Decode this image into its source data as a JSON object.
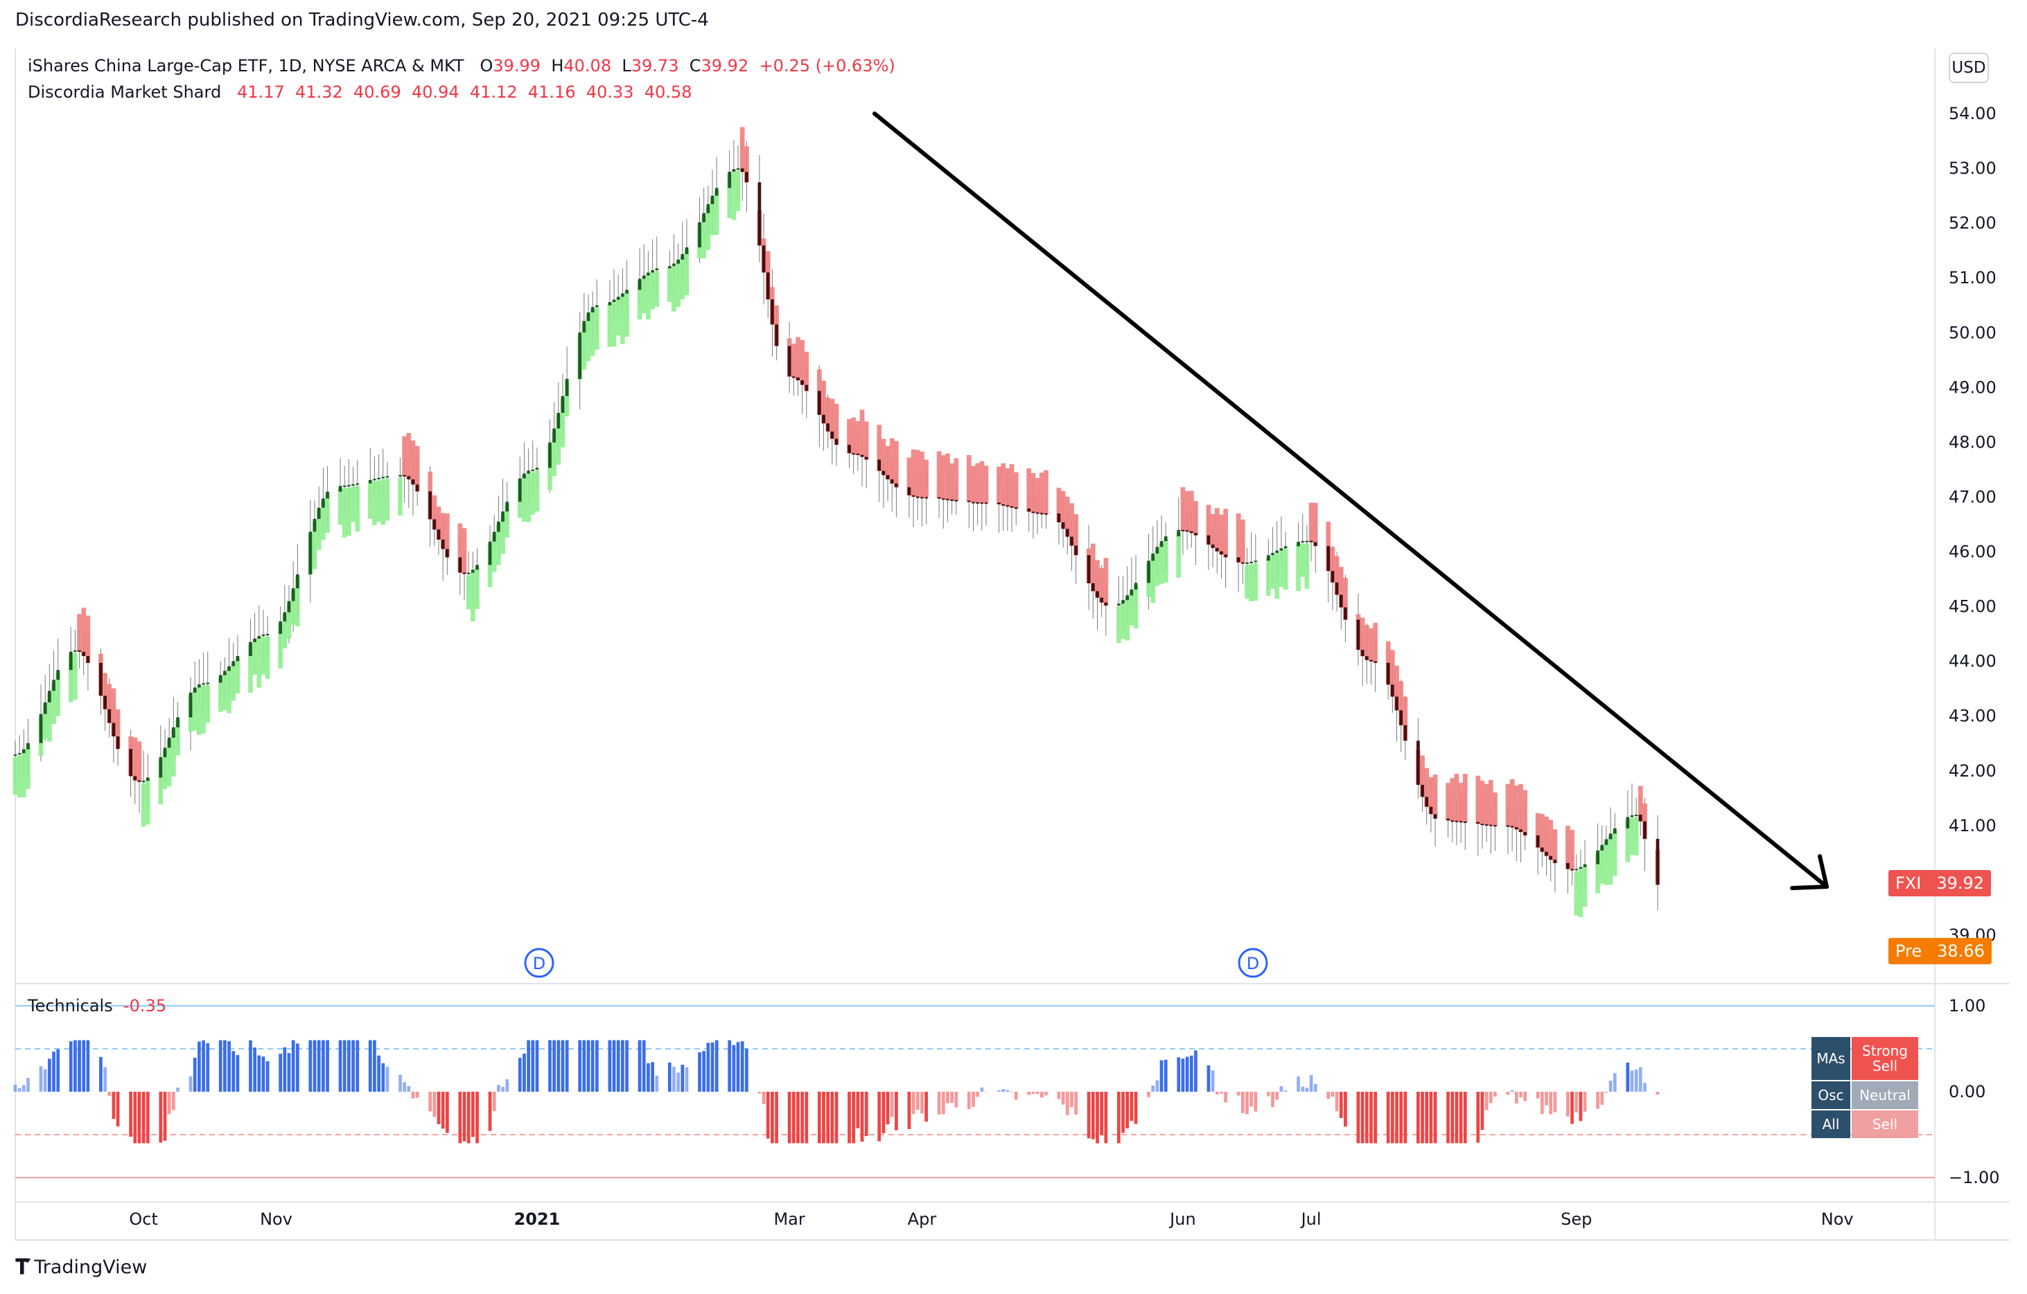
{
  "header": {
    "published": "DiscordiaResearch published on TradingView.com, Sep 20, 2021 09:25 UTC-4"
  },
  "legend": {
    "symbol": "iShares China Large-Cap ETF, 1D, NYSE ARCA & MKT",
    "o_label": "O",
    "o_value": "39.99",
    "h_label": "H",
    "h_value": "40.08",
    "l_label": "L",
    "l_value": "39.73",
    "c_label": "C",
    "c_value": "39.92",
    "change": "+0.25 (+0.63%)",
    "indicator_name": "Discordia Market Shard",
    "indicator_values": "41.17  41.32  40.69  40.94  41.12  41.16  40.33  40.58"
  },
  "currency_button": "USD",
  "price_tags": {
    "fxi_label": "FXI",
    "fxi_value": "39.92",
    "pre_label": "Pre",
    "pre_value": "38.66"
  },
  "event_marker": "D",
  "technicals": {
    "title": "Technicals",
    "value": "-0.35",
    "table": [
      {
        "label": "MAs",
        "rating": "Strong Sell"
      },
      {
        "label": "Osc",
        "rating": "Neutral"
      },
      {
        "label": "All",
        "rating": "Sell"
      }
    ]
  },
  "footer": {
    "brand": "TradingView"
  },
  "colors": {
    "bull_fill": "#1b5e20",
    "bull_wick": "#90ee90",
    "bear_fill": "#4a0e0e",
    "bear_wick": "#f08080",
    "tech_positive": "#3b6ee8",
    "tech_negative": "#ef4444",
    "fxi_tag": "#ef5350",
    "pre_tag": "#f57c00",
    "table_label_bg": "#2c4f6b",
    "strong_sell_bg": "#ef5350",
    "neutral_bg": "#a0aab8",
    "sell_bg": "#f0a0a0"
  },
  "chart_data": [
    {
      "type": "candlestick",
      "y_axis": {
        "ticks": [
          "54.00",
          "53.00",
          "52.00",
          "51.00",
          "50.00",
          "49.00",
          "48.00",
          "47.00",
          "46.00",
          "45.00",
          "44.00",
          "43.00",
          "42.00",
          "41.00",
          "39.00"
        ],
        "range": [
          38.6,
          54.8
        ]
      },
      "x_axis": {
        "ticks": [
          "Oct",
          "Nov",
          "2021",
          "Mar",
          "Apr",
          "Jun",
          "Jul",
          "Sep",
          "Nov"
        ]
      },
      "series_close_approx": {
        "x": [
          "2020-09-01",
          "2020-09-15",
          "2020-09-30",
          "2020-10-15",
          "2020-10-30",
          "2020-11-15",
          "2020-11-30",
          "2020-12-15",
          "2020-12-31",
          "2021-01-15",
          "2021-01-31",
          "2021-02-17",
          "2021-03-01",
          "2021-03-15",
          "2021-03-31",
          "2021-04-15",
          "2021-04-30",
          "2021-05-15",
          "2021-05-31",
          "2021-06-15",
          "2021-06-30",
          "2021-07-15",
          "2021-07-31",
          "2021-08-15",
          "2021-08-31",
          "2021-09-15",
          "2021-09-20"
        ],
        "values": [
          42.3,
          44.2,
          41.8,
          43.6,
          44.5,
          47.2,
          47.4,
          45.6,
          47.5,
          50.5,
          51.2,
          53.0,
          49.2,
          47.8,
          47.0,
          46.9,
          46.7,
          45.0,
          46.4,
          45.8,
          46.2,
          44.0,
          41.1,
          41.0,
          40.2,
          41.2,
          39.92
        ]
      },
      "annotation": "down-trend arrow"
    },
    {
      "type": "bar",
      "title": "Technicals",
      "y_axis": {
        "ticks": [
          "1.00",
          "0.00",
          "−1.00"
        ],
        "range": [
          -1.3,
          1.3
        ]
      },
      "value": -0.35
    }
  ]
}
